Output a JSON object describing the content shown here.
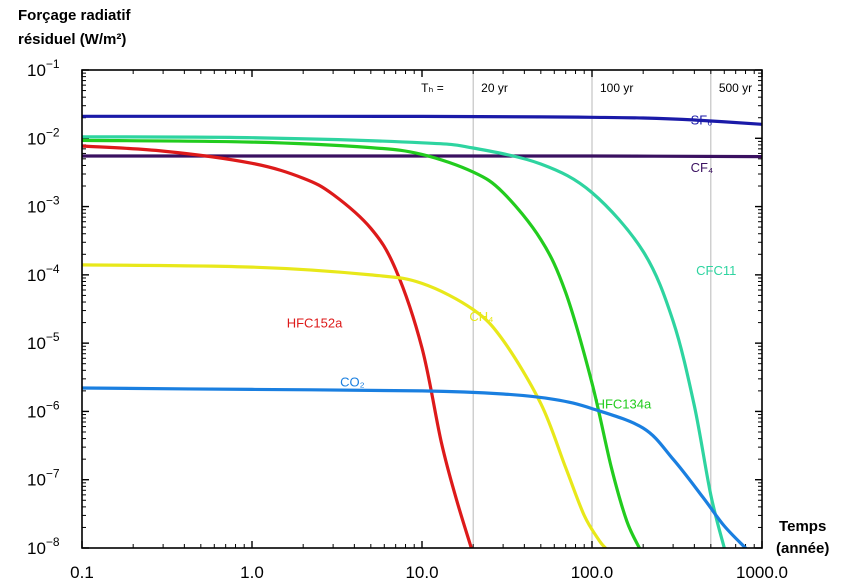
{
  "chart_data": {
    "type": "line",
    "ylabel_line1": "Forçage radiatif",
    "ylabel_line2": "résiduel (W/m²)",
    "xlabel_line1": "Temps",
    "xlabel_line2": "(année)",
    "xscale": "log",
    "yscale": "log",
    "xlim": [
      0.1,
      1000
    ],
    "ylim": [
      1e-08,
      0.1
    ],
    "x_ticks": [
      {
        "value": 0.1,
        "label": "0.1"
      },
      {
        "value": 1,
        "label": "1.0"
      },
      {
        "value": 10,
        "label": "10.0"
      },
      {
        "value": 100,
        "label": "100.0"
      },
      {
        "value": 1000,
        "label": "1000.0"
      }
    ],
    "y_ticks": [
      {
        "value": 0.1,
        "mant": "10",
        "exp": "−1"
      },
      {
        "value": 0.01,
        "mant": "10",
        "exp": "−2"
      },
      {
        "value": 0.001,
        "mant": "10",
        "exp": "−3"
      },
      {
        "value": 0.0001,
        "mant": "10",
        "exp": "−4"
      },
      {
        "value": 1e-05,
        "mant": "10",
        "exp": "−5"
      },
      {
        "value": 1e-06,
        "mant": "10",
        "exp": "−6"
      },
      {
        "value": 1e-07,
        "mant": "10",
        "exp": "−7"
      },
      {
        "value": 1e-08,
        "mant": "10",
        "exp": "−8"
      }
    ],
    "time_horizons": {
      "prefix": "Tₕ  =",
      "lines": [
        {
          "x": 20,
          "label": "20 yr"
        },
        {
          "x": 100,
          "label": "100 yr"
        },
        {
          "x": 500,
          "label": "500 yr"
        }
      ]
    },
    "series": [
      {
        "name": "SF₆",
        "color": "#1a1aa8",
        "x": [
          0.1,
          1,
          10,
          50,
          100,
          200,
          400,
          1000
        ],
        "y": [
          0.021,
          0.021,
          0.0209,
          0.0206,
          0.0203,
          0.0198,
          0.0185,
          0.016
        ],
        "label_at": [
          380,
          0.016
        ]
      },
      {
        "name": "CF₄",
        "color": "#3a1060",
        "x": [
          0.1,
          1,
          10,
          100,
          1000
        ],
        "y": [
          0.0055,
          0.0055,
          0.0055,
          0.0055,
          0.0054
        ],
        "label_at": [
          380,
          0.0032
        ]
      },
      {
        "name": "HFC152a",
        "color": "#dd1a1a",
        "x": [
          0.1,
          0.3,
          1,
          2,
          3,
          5,
          7,
          10,
          13,
          16,
          19.5
        ],
        "y": [
          0.0077,
          0.0065,
          0.0043,
          0.0026,
          0.0015,
          0.00048,
          0.00012,
          8.5e-06,
          3.5e-07,
          5e-08,
          1e-08
        ],
        "label_at": [
          1.6,
          1.7e-05
        ]
      },
      {
        "name": "CFC11",
        "color": "#2ed4a0",
        "x": [
          0.1,
          1,
          10,
          20,
          50,
          100,
          200,
          300,
          400,
          500,
          600
        ],
        "y": [
          0.0105,
          0.0102,
          0.0086,
          0.0072,
          0.0042,
          0.0016,
          0.00022,
          2.1e-05,
          1.2e-06,
          6e-08,
          1e-08
        ],
        "label_at": [
          410,
          0.0001
        ]
      },
      {
        "name": "HFC134a",
        "color": "#22cc1e",
        "x": [
          0.1,
          1,
          5,
          10,
          20,
          30,
          50,
          70,
          100,
          130,
          160,
          190
        ],
        "y": [
          0.0093,
          0.0088,
          0.0073,
          0.0058,
          0.0032,
          0.0016,
          0.00033,
          5.5e-05,
          2.6e-06,
          1.5e-07,
          2.5e-08,
          1e-08
        ],
        "label_at": [
          105,
          1.1e-06
        ]
      },
      {
        "name": "CH₄",
        "color": "#e8e81a",
        "x": [
          0.1,
          1,
          5,
          10,
          20,
          30,
          50,
          70,
          90,
          110,
          120
        ],
        "y": [
          0.00014,
          0.00013,
          0.0001,
          7.5e-05,
          3.1e-05,
          1.1e-05,
          1.3e-06,
          1.5e-07,
          3e-08,
          1.3e-08,
          1e-08
        ],
        "label_at": [
          19,
          2.1e-05
        ]
      },
      {
        "name": "CO₂",
        "color": "#1a7fe0",
        "x": [
          0.1,
          1,
          10,
          30,
          60,
          100,
          200,
          300,
          450,
          600,
          800
        ],
        "y": [
          2.2e-06,
          2.1e-06,
          2e-06,
          1.8e-06,
          1.5e-06,
          1.1e-06,
          5.7e-07,
          2e-07,
          5.5e-08,
          2.1e-08,
          1e-08
        ],
        "label_at": [
          3.3,
          2.3e-06
        ]
      }
    ]
  }
}
